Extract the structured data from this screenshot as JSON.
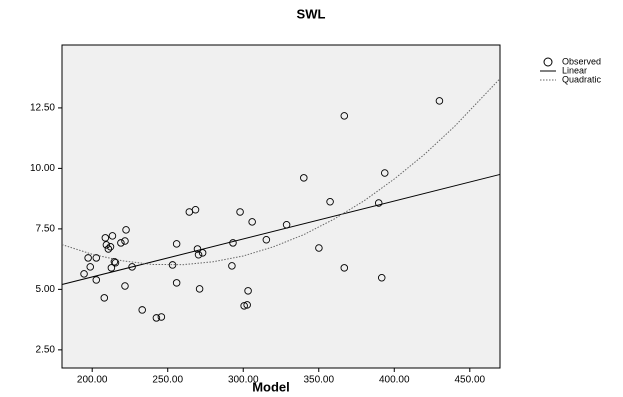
{
  "chart_data": {
    "type": "scatter",
    "title": "SWL",
    "xlabel": "Model",
    "xlim": [
      180,
      470
    ],
    "ylim": [
      1.75,
      15.1
    ],
    "xticks": [
      {
        "value": 200,
        "label": "200.00"
      },
      {
        "value": 250,
        "label": "250.00"
      },
      {
        "value": 300,
        "label": "300.00"
      },
      {
        "value": 350,
        "label": "350.00"
      },
      {
        "value": 400,
        "label": "400.00"
      },
      {
        "value": 450,
        "label": "450.00"
      }
    ],
    "yticks": [
      {
        "value": 2.5,
        "label": "2.50"
      },
      {
        "value": 5,
        "label": "5.00"
      },
      {
        "value": 7.5,
        "label": "7.50"
      },
      {
        "value": 10,
        "label": "10.00"
      },
      {
        "value": 12.5,
        "label": "12.50"
      }
    ],
    "legend": "right",
    "series": [
      {
        "name": "Observed",
        "kind": "points",
        "color": "#000000",
        "x": [
          194.6,
          197.3,
          198.7,
          202.7,
          202.7,
          208.0,
          208.7,
          209.4,
          210.7,
          212.1,
          212.7,
          214.7,
          215.4,
          213.4,
          219.0,
          221.7,
          221.7,
          222.4,
          226.4,
          233.1,
          242.5,
          245.8,
          253.2,
          255.9,
          255.9,
          264.3,
          268.4,
          269.7,
          270.4,
          273.1,
          271.1,
          292.5,
          293.2,
          297.9,
          300.6,
          302.6,
          303.2,
          305.9,
          315.3,
          328.7,
          340.1,
          350.1,
          357.5,
          366.9,
          366.9,
          389.7,
          391.7,
          393.7,
          429.9
        ],
        "values": [
          5.64,
          6.3,
          5.93,
          6.3,
          5.39,
          4.65,
          7.13,
          6.84,
          6.67,
          6.76,
          5.89,
          6.14,
          6.1,
          7.21,
          6.92,
          7.0,
          5.14,
          7.46,
          5.93,
          4.15,
          3.82,
          3.86,
          6.01,
          6.88,
          5.27,
          8.2,
          8.29,
          6.67,
          6.43,
          6.51,
          5.02,
          5.97,
          6.92,
          8.2,
          4.32,
          4.36,
          4.94,
          7.79,
          7.05,
          7.67,
          9.61,
          6.71,
          8.62,
          12.17,
          5.89,
          8.57,
          5.48,
          9.81,
          12.79
        ]
      },
      {
        "name": "Linear",
        "kind": "line",
        "color": "#000000",
        "x": [
          180,
          470
        ],
        "values": [
          5.2,
          9.75
        ]
      },
      {
        "name": "Quadratic",
        "kind": "dotted",
        "color": "#666666",
        "x": [
          180,
          200,
          220,
          240,
          260,
          280,
          300,
          320,
          340,
          360,
          380,
          400,
          420,
          440,
          470
        ],
        "values": [
          6.85,
          6.45,
          6.18,
          6.03,
          6.02,
          6.14,
          6.38,
          6.76,
          7.26,
          7.9,
          8.66,
          9.56,
          10.58,
          11.74,
          13.71
        ]
      }
    ]
  }
}
